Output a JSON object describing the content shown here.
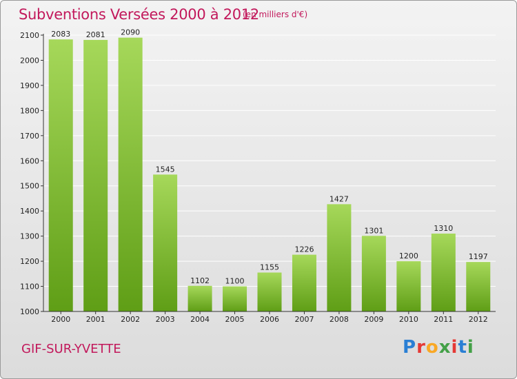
{
  "header": {
    "title": "Subventions Versées 2000 à 2012",
    "subtitle": "(en milliers d'€)"
  },
  "footer": {
    "city": "GIF-SUR-YVETTE",
    "logo_letters": [
      "P",
      "r",
      "o",
      "x",
      "i",
      "t",
      "i"
    ],
    "logo_colors": [
      "#2a7fd4",
      "#e53935",
      "#f9a825",
      "#43a047",
      "#e53935",
      "#2a7fd4",
      "#43a047"
    ]
  },
  "colors": {
    "title": "#c2185b",
    "bar_light": "#a6d85a",
    "bar_dark": "#5f9e16"
  },
  "chart_data": {
    "type": "bar",
    "categories": [
      "2000",
      "2001",
      "2002",
      "2003",
      "2004",
      "2005",
      "2006",
      "2007",
      "2008",
      "2009",
      "2010",
      "2011",
      "2012"
    ],
    "values": [
      2083,
      2081,
      2090,
      1545,
      1102,
      1100,
      1155,
      1226,
      1427,
      1301,
      1200,
      1310,
      1197
    ],
    "ylim": [
      1000,
      2100
    ],
    "yticks": [
      1000,
      1100,
      1200,
      1300,
      1400,
      1500,
      1600,
      1700,
      1800,
      1900,
      2000,
      2100
    ],
    "grid": true,
    "title": "Subventions Versées 2000 à 2012",
    "xlabel": "",
    "ylabel": ""
  }
}
